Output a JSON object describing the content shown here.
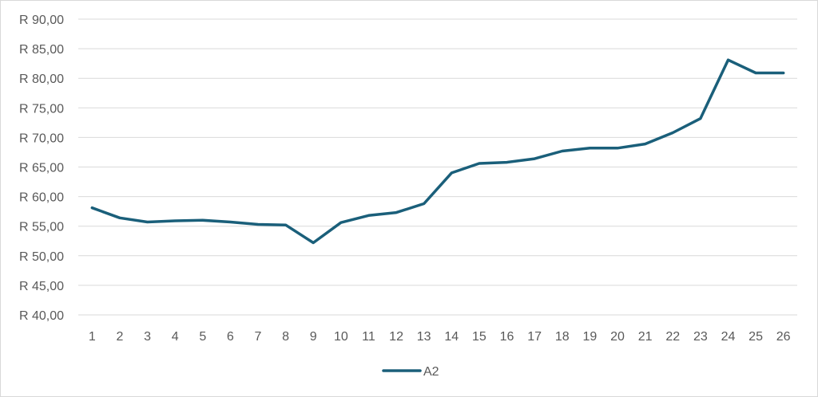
{
  "chart_data": {
    "type": "line",
    "title": "",
    "xlabel": "",
    "ylabel": "",
    "categories": [
      "1",
      "2",
      "3",
      "4",
      "5",
      "6",
      "7",
      "8",
      "9",
      "10",
      "11",
      "12",
      "13",
      "14",
      "15",
      "16",
      "17",
      "18",
      "19",
      "20",
      "21",
      "22",
      "23",
      "24",
      "25",
      "26"
    ],
    "series": [
      {
        "name": "A2",
        "color": "#1a5f7a",
        "values": [
          58.1,
          56.4,
          55.7,
          55.9,
          56.0,
          55.7,
          55.3,
          55.2,
          52.2,
          55.6,
          56.8,
          57.3,
          58.8,
          64.0,
          65.6,
          65.8,
          66.4,
          67.7,
          68.2,
          68.2,
          68.9,
          70.8,
          73.2,
          83.1,
          80.9,
          80.9
        ]
      }
    ],
    "ylim": [
      40,
      90
    ],
    "y_ticks": [
      "R 40,00",
      "R 45,00",
      "R 50,00",
      "R 55,00",
      "R 60,00",
      "R 65,00",
      "R 70,00",
      "R 75,00",
      "R 80,00",
      "R 85,00",
      "R 90,00"
    ],
    "grid": true,
    "legend_position": "bottom"
  }
}
